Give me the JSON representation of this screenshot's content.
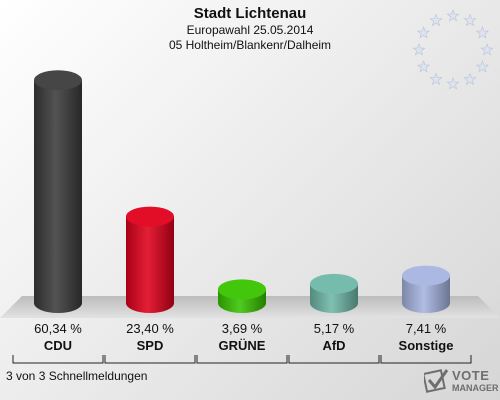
{
  "header": {
    "title": "Stadt Lichtenau",
    "subtitle": "Europawahl 25.05.2014",
    "district": "05 Holtheim/Blankenr/Dalheim"
  },
  "footer": {
    "status": "3 von 3 Schnellmeldungen"
  },
  "logo": {
    "line1": "VOTE",
    "line2": "MANAGER"
  },
  "chart_data": {
    "type": "bar",
    "categories": [
      "CDU",
      "SPD",
      "GRÜNE",
      "AfD",
      "Sonstige"
    ],
    "values": [
      60.34,
      23.4,
      3.69,
      5.17,
      7.41
    ],
    "value_labels": [
      "60,34 %",
      "23,40 %",
      "3,69 %",
      "5,17 %",
      "7,41 %"
    ],
    "colors": [
      "#3c3c3c",
      "#e0001c",
      "#38c400",
      "#6fb8a8",
      "#a6b4e0"
    ],
    "ylim": [
      0,
      65
    ],
    "grid": false,
    "legend": "none"
  }
}
